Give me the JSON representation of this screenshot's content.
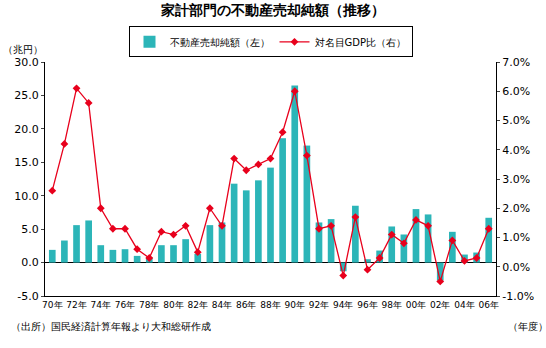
{
  "chart_data": {
    "type": "bar",
    "title": "家計部門の不動産売却純額（推移）",
    "y_label": "（兆円）",
    "x_label": "（年度）",
    "annotations": [
      "（出所）国民経済計算年報より大和総研作成"
    ],
    "categories": [
      "70年",
      null,
      "72年",
      null,
      "74年",
      null,
      "76年",
      null,
      "78年",
      null,
      "80年",
      null,
      "82年",
      null,
      "84年",
      null,
      "86年",
      null,
      "88年",
      null,
      "90年",
      null,
      "92年",
      null,
      "94年",
      null,
      "96年",
      null,
      "98年",
      null,
      "00年",
      null,
      "02年",
      null,
      "04年",
      null,
      "06年"
    ],
    "series": [
      {
        "name": "不動産売却純額（左）",
        "type": "bar",
        "color": "#2cb5b8",
        "values": [
          1.9,
          3.3,
          5.6,
          6.3,
          2.6,
          1.9,
          2.0,
          1.0,
          0.8,
          2.6,
          2.6,
          3.5,
          1.3,
          5.6,
          6.0,
          11.8,
          10.8,
          12.3,
          14.2,
          18.6,
          26.5,
          17.5,
          6.0,
          6.5,
          -1.3,
          8.5,
          0.5,
          1.8,
          5.4,
          4.2,
          8.0,
          7.2,
          -2.7,
          4.6,
          1.2,
          1.5,
          6.7
        ]
      },
      {
        "name": "対名目GDP比（右）",
        "type": "line",
        "axis": "y2",
        "color": "#e8001c",
        "marker": "diamond",
        "line_style": "solid",
        "values": [
          2.6,
          4.2,
          6.1,
          5.6,
          2.0,
          1.3,
          1.3,
          0.6,
          0.3,
          1.2,
          1.1,
          1.4,
          0.5,
          2.0,
          1.4,
          3.7,
          3.3,
          3.5,
          3.7,
          4.6,
          6.0,
          3.8,
          1.3,
          1.4,
          -0.3,
          1.7,
          -0.1,
          0.3,
          1.1,
          0.8,
          1.6,
          1.4,
          -0.5,
          0.9,
          0.2,
          0.3,
          1.3
        ]
      }
    ],
    "ylim": [
      -5,
      30
    ],
    "yticks": [
      {
        "value": -5,
        "label": "-5.0"
      },
      {
        "value": 0,
        "label": "0.0"
      },
      {
        "value": 5,
        "label": "5.0"
      },
      {
        "value": 10,
        "label": "10.0"
      },
      {
        "value": 15,
        "label": "15.0"
      },
      {
        "value": 20,
        "label": "20.0"
      },
      {
        "value": 25,
        "label": "25.0"
      },
      {
        "value": 30,
        "label": "30.0"
      }
    ],
    "y2lim": [
      -1,
      7
    ],
    "y2ticks": [
      {
        "value": -1,
        "label": "-1.0%"
      },
      {
        "value": 0,
        "label": "0.0%"
      },
      {
        "value": 1,
        "label": "1.0%"
      },
      {
        "value": 2,
        "label": "2.0%"
      },
      {
        "value": 3,
        "label": "3.0%"
      },
      {
        "value": 4,
        "label": "4.0%"
      },
      {
        "value": 5,
        "label": "5.0%"
      },
      {
        "value": 6,
        "label": "6.0%"
      },
      {
        "value": 7,
        "label": "7.0%"
      }
    ],
    "grid": false,
    "legend": "top"
  }
}
